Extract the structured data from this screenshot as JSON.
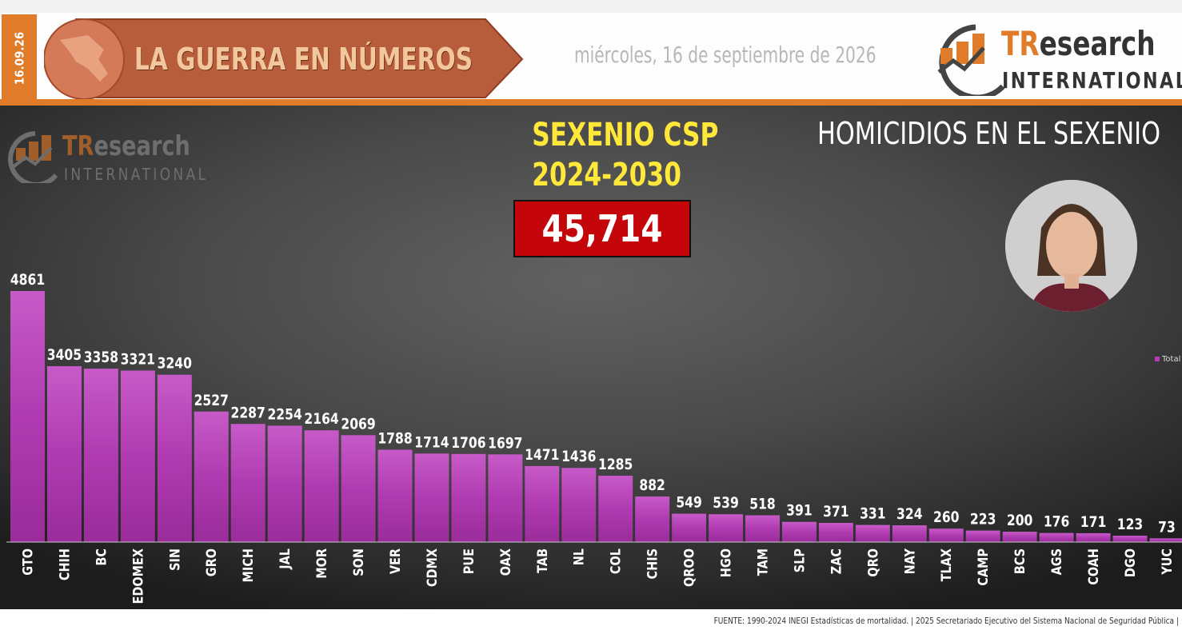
{
  "header": {
    "short_date": "16.09.26",
    "banner_title": "LA GUERRA EN NÚMEROS",
    "long_date": "miércoles, 16 de septiembre de 2026",
    "logo_tr": "TR",
    "logo_research": "esearch",
    "logo_international": "INTERNATIONAL"
  },
  "panel": {
    "logo_tr": "TR",
    "logo_research": "esearch",
    "logo_international": "INTERNATIONAL",
    "sexenio_label": "SEXENIO CSP",
    "sexenio_years": "2024-2030",
    "total": "45,714",
    "chart_title": "HOMICIDIOS EN EL SEXENIO"
  },
  "colors": {
    "accent_orange": "#e07b2a",
    "bar_purple": "#b63bb7",
    "total_box_red": "#c4060a",
    "highlight_yellow": "#ffe83a"
  },
  "chart_data": {
    "type": "bar",
    "title": "HOMICIDIOS EN EL SEXENIO",
    "categories": [
      "GTO",
      "CHIH",
      "BC",
      "EDOMEX",
      "SIN",
      "GRO",
      "MICH",
      "JAL",
      "MOR",
      "SON",
      "VER",
      "CDMX",
      "PUE",
      "OAX",
      "TAB",
      "NL",
      "COL",
      "CHIS",
      "QROO",
      "HGO",
      "TAM",
      "SLP",
      "ZAC",
      "QRO",
      "NAY",
      "TLAX",
      "CAMP",
      "BCS",
      "AGS",
      "COAH",
      "DGO",
      "YUC"
    ],
    "series": [
      {
        "name": "Total",
        "values": [
          4861,
          3405,
          3358,
          3321,
          3240,
          2527,
          2287,
          2254,
          2164,
          2069,
          1788,
          1714,
          1706,
          1697,
          1471,
          1436,
          1285,
          882,
          549,
          539,
          518,
          391,
          371,
          331,
          324,
          260,
          223,
          200,
          176,
          171,
          123,
          73
        ]
      }
    ],
    "ylim": [
      0,
      4861
    ],
    "grid": false,
    "legend_position": "right"
  },
  "footer": {
    "source": "FUENTE: 1990-2024 INEGI Estadísticas de mortalidad. | 2025 Secretariado Ejecutivo del Sistema Nacional de Seguridad Pública |"
  }
}
